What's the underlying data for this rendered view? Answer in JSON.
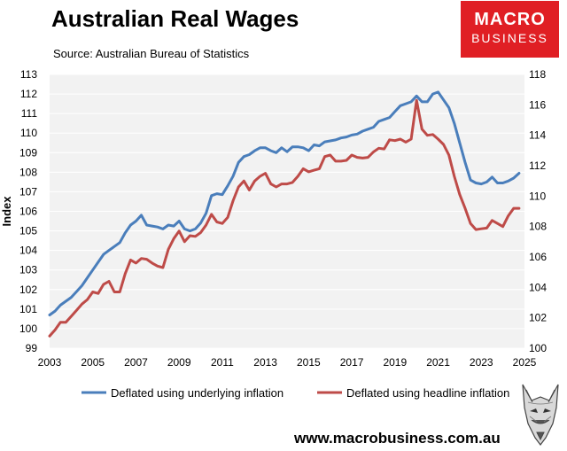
{
  "header": {
    "title": "Australian Real Wages",
    "source": "Source: Australian Bureau of Statistics",
    "logo_line1": "MACRO",
    "logo_line2": "BUSINESS",
    "website": "www.macrobusiness.com.au"
  },
  "colors": {
    "underlying": "#4a7ebb",
    "headline": "#be4b48",
    "plot_bg": "#f2f2f2",
    "grid": "#ffffff",
    "logo_bg": "#e01f24"
  },
  "icons": {
    "logo": "fox-icon"
  },
  "chart_data": {
    "type": "line",
    "title": "Australian Real Wages",
    "ylabel": "Index",
    "xlim": [
      2003,
      2025
    ],
    "ylim": [
      99,
      113
    ],
    "y2lim": [
      100,
      118
    ],
    "x_ticks": [
      "2003",
      "2005",
      "2007",
      "2009",
      "2011",
      "2013",
      "2015",
      "2017",
      "2019",
      "2021",
      "2023",
      "2025"
    ],
    "y_ticks": [
      "99",
      "100",
      "101",
      "102",
      "103",
      "104",
      "105",
      "106",
      "107",
      "108",
      "109",
      "110",
      "111",
      "112",
      "113"
    ],
    "y2_ticks": [
      "100",
      "102",
      "104",
      "106",
      "108",
      "110",
      "112",
      "114",
      "116",
      "118"
    ],
    "legend_position": "bottom",
    "grid": true,
    "series": [
      {
        "name": "Deflated using underlying inflation",
        "axis": "left",
        "x": [
          2003.0,
          2003.25,
          2003.5,
          2003.75,
          2004.0,
          2004.25,
          2004.5,
          2004.75,
          2005.0,
          2005.25,
          2005.5,
          2005.75,
          2006.0,
          2006.25,
          2006.5,
          2006.75,
          2007.0,
          2007.25,
          2007.5,
          2007.75,
          2008.0,
          2008.25,
          2008.5,
          2008.75,
          2009.0,
          2009.25,
          2009.5,
          2009.75,
          2010.0,
          2010.25,
          2010.5,
          2010.75,
          2011.0,
          2011.25,
          2011.5,
          2011.75,
          2012.0,
          2012.25,
          2012.5,
          2012.75,
          2013.0,
          2013.25,
          2013.5,
          2013.75,
          2014.0,
          2014.25,
          2014.5,
          2014.75,
          2015.0,
          2015.25,
          2015.5,
          2015.75,
          2016.0,
          2016.25,
          2016.5,
          2016.75,
          2017.0,
          2017.25,
          2017.5,
          2017.75,
          2018.0,
          2018.25,
          2018.5,
          2018.75,
          2019.0,
          2019.25,
          2019.5,
          2019.75,
          2020.0,
          2020.25,
          2020.5,
          2020.75,
          2021.0,
          2021.25,
          2021.5,
          2021.75,
          2022.0,
          2022.25,
          2022.5,
          2022.75,
          2023.0,
          2023.25,
          2023.5,
          2023.75,
          2024.0,
          2024.25,
          2024.5,
          2024.75
        ],
        "values": [
          100.7,
          100.9,
          101.2,
          101.4,
          101.6,
          101.9,
          102.2,
          102.6,
          103.0,
          103.4,
          103.8,
          104.0,
          104.2,
          104.4,
          104.9,
          105.3,
          105.5,
          105.8,
          105.3,
          105.25,
          105.2,
          105.1,
          105.3,
          105.25,
          105.5,
          105.1,
          105.0,
          105.1,
          105.4,
          105.9,
          106.8,
          106.9,
          106.85,
          107.3,
          107.8,
          108.5,
          108.8,
          108.9,
          109.1,
          109.25,
          109.25,
          109.1,
          109.0,
          109.25,
          109.05,
          109.3,
          109.3,
          109.25,
          109.1,
          109.4,
          109.35,
          109.55,
          109.6,
          109.65,
          109.75,
          109.8,
          109.9,
          109.95,
          110.1,
          110.2,
          110.3,
          110.6,
          110.7,
          110.8,
          111.1,
          111.4,
          111.5,
          111.6,
          111.9,
          111.6,
          111.6,
          112.0,
          112.1,
          111.7,
          111.3,
          110.5,
          109.5,
          108.5,
          107.6,
          107.45,
          107.4,
          107.5,
          107.75,
          107.45,
          107.45,
          107.55,
          107.7,
          107.95
        ]
      },
      {
        "name": "Deflated using headline inflation",
        "axis": "right",
        "x": [
          2003.0,
          2003.25,
          2003.5,
          2003.75,
          2004.0,
          2004.25,
          2004.5,
          2004.75,
          2005.0,
          2005.25,
          2005.5,
          2005.75,
          2006.0,
          2006.25,
          2006.5,
          2006.75,
          2007.0,
          2007.25,
          2007.5,
          2007.75,
          2008.0,
          2008.25,
          2008.5,
          2008.75,
          2009.0,
          2009.25,
          2009.5,
          2009.75,
          2010.0,
          2010.25,
          2010.5,
          2010.75,
          2011.0,
          2011.25,
          2011.5,
          2011.75,
          2012.0,
          2012.25,
          2012.5,
          2012.75,
          2013.0,
          2013.25,
          2013.5,
          2013.75,
          2014.0,
          2014.25,
          2014.5,
          2014.75,
          2015.0,
          2015.25,
          2015.5,
          2015.75,
          2016.0,
          2016.25,
          2016.5,
          2016.75,
          2017.0,
          2017.25,
          2017.5,
          2017.75,
          2018.0,
          2018.25,
          2018.5,
          2018.75,
          2019.0,
          2019.25,
          2019.5,
          2019.75,
          2020.0,
          2020.25,
          2020.5,
          2020.75,
          2021.0,
          2021.25,
          2021.5,
          2021.75,
          2022.0,
          2022.25,
          2022.5,
          2022.75,
          2023.0,
          2023.25,
          2023.5,
          2023.75,
          2024.0,
          2024.25,
          2024.5,
          2024.75
        ],
        "values": [
          100.8,
          101.2,
          101.7,
          101.7,
          102.1,
          102.5,
          102.9,
          103.2,
          103.7,
          103.6,
          104.2,
          104.4,
          103.7,
          103.7,
          104.9,
          105.8,
          105.6,
          105.9,
          105.85,
          105.6,
          105.4,
          105.3,
          106.5,
          107.2,
          107.7,
          107.0,
          107.4,
          107.35,
          107.6,
          108.1,
          108.8,
          108.3,
          108.2,
          108.6,
          109.7,
          110.6,
          111.0,
          110.4,
          111.0,
          111.3,
          111.5,
          110.8,
          110.6,
          110.8,
          110.8,
          110.9,
          111.3,
          111.8,
          111.6,
          111.7,
          111.8,
          112.6,
          112.7,
          112.3,
          112.3,
          112.35,
          112.7,
          112.55,
          112.5,
          112.55,
          112.9,
          113.15,
          113.1,
          113.7,
          113.65,
          113.75,
          113.55,
          113.75,
          116.3,
          114.4,
          114.0,
          114.05,
          113.75,
          113.4,
          112.7,
          111.3,
          110.1,
          109.2,
          108.2,
          107.8,
          107.85,
          107.9,
          108.4,
          108.2,
          108.0,
          108.7,
          109.2,
          109.2
        ]
      }
    ]
  }
}
